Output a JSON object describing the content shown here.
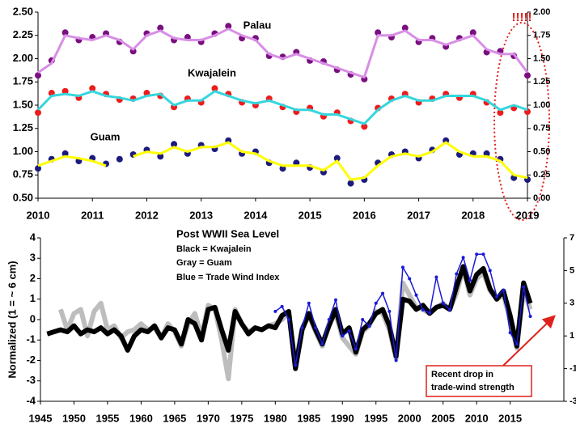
{
  "chart_data": [
    {
      "type": "scatter-line",
      "x": [
        2010,
        2010.25,
        2010.5,
        2010.75,
        2011,
        2011.25,
        2011.5,
        2011.75,
        2012,
        2012.25,
        2012.5,
        2012.75,
        2013,
        2013.25,
        2013.5,
        2013.75,
        2014,
        2014.25,
        2014.5,
        2014.75,
        2015,
        2015.25,
        2015.5,
        2015.75,
        2016,
        2016.25,
        2016.5,
        2016.75,
        2017,
        2017.25,
        2017.5,
        2017.75,
        2018,
        2018.25,
        2018.5,
        2018.75,
        2019
      ],
      "xlim": [
        2010,
        2019
      ],
      "xticks": [
        2010,
        2011,
        2012,
        2013,
        2014,
        2015,
        2016,
        2017,
        2018,
        2019
      ],
      "ylim": [
        0.5,
        2.5
      ],
      "yticks": [
        {
          "value": 0.5,
          "label": "0.50"
        },
        {
          "value": 0.75,
          "label": "0.75"
        },
        {
          "value": 1,
          "label": "1.00"
        },
        {
          "value": 1.25,
          "label": "1.25"
        },
        {
          "value": 1.5,
          "label": "1.50"
        },
        {
          "value": 1.75,
          "label": "1.75"
        },
        {
          "value": 2,
          "label": "2.00"
        },
        {
          "value": 2.25,
          "label": "2.25"
        },
        {
          "value": 2.5,
          "label": "2.50"
        }
      ],
      "y2lim": [
        0,
        2
      ],
      "y2ticks": [
        {
          "value": 0,
          "label": "0.00"
        },
        {
          "value": 0.25,
          "label": "0.25"
        },
        {
          "value": 0.5,
          "label": "0.50"
        },
        {
          "value": 0.75,
          "label": "0.75"
        },
        {
          "value": 1,
          "label": "1.00"
        },
        {
          "value": 1.25,
          "label": "1.25"
        },
        {
          "value": 1.5,
          "label": "1.50"
        },
        {
          "value": 1.75,
          "label": "1.75"
        },
        {
          "value": 2,
          "label": "2.00"
        }
      ],
      "annotation": "!!!!!",
      "series": [
        {
          "name": "Palau",
          "color": "#7a0f80",
          "smooth_color": "#d98ee6",
          "values": [
            1.82,
            1.98,
            2.28,
            2.2,
            2.23,
            2.27,
            2.18,
            2.08,
            2.27,
            2.33,
            2.2,
            2.23,
            2.18,
            2.27,
            2.35,
            2.22,
            2.22,
            2.03,
            2.02,
            2.07,
            1.98,
            1.97,
            1.88,
            1.83,
            1.78,
            2.28,
            2.23,
            2.33,
            2.18,
            2.22,
            2.13,
            2.22,
            2.28,
            2.07,
            2.08,
            2.03,
            1.82
          ],
          "smooth_values": [
            1.85,
            1.95,
            2.25,
            2.22,
            2.2,
            2.25,
            2.2,
            2.1,
            2.25,
            2.3,
            2.22,
            2.2,
            2.2,
            2.25,
            2.32,
            2.25,
            2.2,
            2.05,
            2,
            2.05,
            2,
            1.95,
            1.9,
            1.85,
            1.8,
            2.25,
            2.25,
            2.3,
            2.2,
            2.2,
            2.15,
            2.2,
            2.25,
            2.1,
            2.05,
            2.05,
            1.85
          ]
        },
        {
          "name": "Kwajalein",
          "color": "#ee1c1c",
          "smooth_color": "#35d6dc",
          "values": [
            1.42,
            1.63,
            1.65,
            1.58,
            1.68,
            1.62,
            1.56,
            1.57,
            1.63,
            1.6,
            1.48,
            1.57,
            1.53,
            1.68,
            1.62,
            1.53,
            1.5,
            1.57,
            1.48,
            1.43,
            1.47,
            1.38,
            1.42,
            1.33,
            1.27,
            1.47,
            1.57,
            1.62,
            1.53,
            1.57,
            1.62,
            1.58,
            1.62,
            1.53,
            1.42,
            1.47,
            1.43
          ],
          "smooth_values": [
            1.45,
            1.6,
            1.62,
            1.6,
            1.65,
            1.6,
            1.58,
            1.55,
            1.6,
            1.62,
            1.5,
            1.55,
            1.55,
            1.65,
            1.6,
            1.55,
            1.52,
            1.55,
            1.5,
            1.45,
            1.45,
            1.4,
            1.4,
            1.35,
            1.3,
            1.45,
            1.55,
            1.6,
            1.55,
            1.55,
            1.6,
            1.6,
            1.6,
            1.55,
            1.45,
            1.5,
            1.45
          ]
        },
        {
          "name": "Guam",
          "color": "#1b1b7e",
          "smooth_color": "#ffff00",
          "values": [
            0.82,
            0.92,
            0.98,
            0.9,
            0.93,
            0.87,
            0.92,
            0.97,
            1.02,
            0.95,
            1.08,
            0.98,
            1.07,
            1.03,
            1.12,
            0.98,
            1,
            0.88,
            0.82,
            0.88,
            0.83,
            0.78,
            0.93,
            0.66,
            0.7,
            0.88,
            0.97,
            1,
            0.93,
            1.02,
            1.12,
            0.97,
            0.98,
            0.98,
            0.92,
            0.72,
            0.7
          ],
          "smooth_values": [
            0.85,
            0.9,
            0.95,
            0.93,
            0.9,
            0.85,
            null,
            0.95,
            1,
            0.98,
            1.05,
            1,
            1.05,
            1.05,
            1.1,
            1,
            0.98,
            0.9,
            0.85,
            0.85,
            0.85,
            0.8,
            0.9,
            0.7,
            0.72,
            0.85,
            0.95,
            0.98,
            0.95,
            1,
            1.1,
            1,
            0.95,
            0.95,
            0.9,
            0.75,
            0.72
          ]
        }
      ]
    },
    {
      "type": "line",
      "y_label": "Normalized (1 = ~ 6 cm)",
      "legend_title": "Post WWII Sea Level",
      "legend_lines": [
        "Black = Kwajalein",
        "Gray = Guam",
        "Blue = Trade Wind Index"
      ],
      "annotation": [
        "Recent drop in",
        "trade-wind strength"
      ],
      "x": [
        1946,
        1947,
        1948,
        1949,
        1950,
        1951,
        1952,
        1953,
        1954,
        1955,
        1956,
        1957,
        1958,
        1959,
        1960,
        1961,
        1962,
        1963,
        1964,
        1965,
        1966,
        1967,
        1968,
        1969,
        1970,
        1971,
        1972,
        1973,
        1974,
        1975,
        1976,
        1977,
        1978,
        1979,
        1980,
        1981,
        1982,
        1983,
        1984,
        1985,
        1986,
        1987,
        1988,
        1989,
        1990,
        1991,
        1992,
        1993,
        1994,
        1995,
        1996,
        1997,
        1998,
        1999,
        2000,
        2001,
        2002,
        2003,
        2004,
        2005,
        2006,
        2007,
        2008,
        2009,
        2010,
        2011,
        2012,
        2013,
        2014,
        2015,
        2016,
        2017,
        2018
      ],
      "xlim": [
        1945,
        2023
      ],
      "xticks": [
        1945,
        1950,
        1955,
        1960,
        1965,
        1970,
        1975,
        1980,
        1985,
        1990,
        1995,
        2000,
        2005,
        2010,
        2015
      ],
      "ylim": [
        -4,
        4
      ],
      "yticks": [
        -4,
        -3,
        -2,
        -1,
        0,
        1,
        2,
        3,
        4
      ],
      "y2lim": [
        -3,
        7
      ],
      "y2ticks": [
        -3,
        -1,
        1,
        3,
        5,
        7
      ],
      "series": [
        {
          "color": "#bdbdbd",
          "width": 6,
          "values": [
            null,
            null,
            0.5,
            -0.5,
            0.3,
            0.5,
            -0.8,
            0.4,
            0.8,
            -0.5,
            -0.3,
            -0.9,
            -0.6,
            -0.5,
            -0.2,
            -0.5,
            -0.4,
            -0.9,
            -0.2,
            -0.6,
            -1.3,
            -0.2,
            0.3,
            -0.8,
            0.7,
            0.5,
            -1.0,
            -2.9,
            0.5,
            -0.2,
            -0.6,
            -0.4,
            -0.5,
            -0.3,
            -0.2,
            0.0,
            0.3,
            -2.2,
            -0.4,
            0.2,
            -0.6,
            -1.3,
            -0.2,
            0.3,
            -0.9,
            -1.3,
            -1.7,
            -0.6,
            -0.3,
            0.4,
            0.3,
            -0.5,
            -1.9,
            1.8,
            1.2,
            0.6,
            0.5,
            0.3,
            0.6,
            0.8,
            0.5,
            1.3,
            2.5,
            1.2,
            2.0,
            2.3,
            1.4,
            1.0,
            1.2,
            0.0,
            -1.4,
            1.5,
            0.5
          ]
        },
        {
          "color": "#000000",
          "width": 6,
          "values": [
            -0.7,
            -0.6,
            -0.5,
            -0.6,
            -0.3,
            -0.7,
            -0.5,
            -0.6,
            -0.4,
            -0.7,
            -0.5,
            -0.8,
            -1.5,
            -0.8,
            -0.5,
            -0.6,
            -0.3,
            -0.9,
            -0.4,
            -0.5,
            -1.2,
            0.0,
            -0.2,
            -1.0,
            0.5,
            0.6,
            -0.5,
            -1.5,
            0.4,
            -0.2,
            -0.7,
            -0.4,
            -0.5,
            -0.3,
            -0.4,
            0.2,
            0.4,
            -2.4,
            -0.5,
            0.3,
            -0.5,
            -1.2,
            -0.3,
            0.5,
            -0.7,
            -0.4,
            -1.6,
            -0.5,
            -0.2,
            0.3,
            0.5,
            -0.3,
            -1.8,
            1.0,
            0.9,
            0.5,
            0.7,
            0.3,
            0.6,
            0.7,
            0.5,
            1.6,
            2.6,
            1.4,
            2.2,
            2.5,
            1.5,
            1.0,
            1.4,
            0.2,
            -1.3,
            1.8,
            0.8
          ]
        },
        {
          "color": "#1a1ad6",
          "width": 1.5,
          "axis": "y2",
          "values": [
            null,
            null,
            null,
            null,
            null,
            null,
            null,
            null,
            null,
            null,
            null,
            null,
            null,
            null,
            null,
            null,
            null,
            null,
            null,
            null,
            null,
            null,
            null,
            null,
            null,
            null,
            null,
            null,
            null,
            null,
            null,
            null,
            null,
            null,
            2.5,
            2.8,
            2.0,
            -0.8,
            1.5,
            3.0,
            1.5,
            0.5,
            2.0,
            3.2,
            1.0,
            1.3,
            0.2,
            2.0,
            1.6,
            3.0,
            3.6,
            2.5,
            -0.5,
            5.2,
            4.5,
            3.5,
            2.6,
            2.4,
            4.6,
            3.0,
            2.6,
            4.8,
            5.8,
            4.4,
            6.0,
            6.0,
            5.0,
            3.4,
            3.8,
            1.2,
            0.5,
            4.0,
            2.2
          ]
        }
      ]
    }
  ]
}
